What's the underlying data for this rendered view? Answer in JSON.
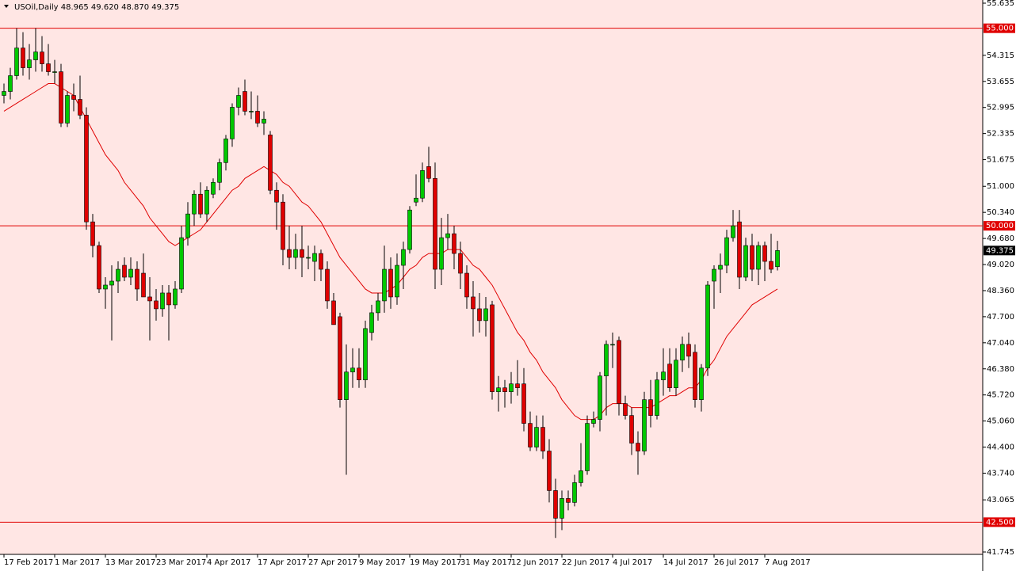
{
  "chart_data": {
    "type": "candlestick",
    "title": "USOil,Daily  48.965 49.620 48.870 49.375",
    "categories": [
      "17 Feb 2017",
      null,
      null,
      null,
      null,
      null,
      null,
      null,
      "1 Mar 2017",
      null,
      null,
      null,
      null,
      null,
      null,
      null,
      "13 Mar 2017",
      null,
      null,
      null,
      null,
      null,
      null,
      null,
      "23 Mar 2017",
      null,
      null,
      null,
      null,
      null,
      null,
      null,
      "4 Apr 2017",
      null,
      null,
      null,
      null,
      null,
      null,
      null,
      "17 Apr 2017",
      null,
      null,
      null,
      null,
      null,
      null,
      null,
      "27 Apr 2017",
      null,
      null,
      null,
      null,
      null,
      null,
      null,
      "9 May 2017",
      null,
      null,
      null,
      null,
      null,
      null,
      null,
      "19 May 2017",
      null,
      null,
      null,
      null,
      null,
      null,
      null,
      "31 May 2017",
      null,
      null,
      null,
      null,
      null,
      null,
      null,
      "12 Jun 2017",
      null,
      null,
      null,
      null,
      null,
      null,
      null,
      "22 Jun 2017",
      null,
      null,
      null,
      null,
      null,
      null,
      null,
      "4 Jul 2017",
      null,
      null,
      null,
      null,
      null,
      null,
      null,
      "14 Jul 2017",
      null,
      null,
      null,
      null,
      null,
      null,
      null,
      "26 Jul 2017",
      null,
      null,
      null,
      null,
      null,
      null,
      null,
      "7 Aug 2017",
      null,
      null
    ],
    "candles": [
      [
        53.3,
        53.6,
        53.1,
        53.4
      ],
      [
        53.4,
        54.0,
        53.2,
        53.8
      ],
      [
        53.8,
        55.0,
        53.7,
        54.5
      ],
      [
        54.5,
        54.9,
        53.8,
        54.0
      ],
      [
        54.0,
        54.6,
        53.7,
        54.2
      ],
      [
        54.2,
        55.0,
        53.9,
        54.4
      ],
      [
        54.4,
        54.8,
        53.9,
        54.1
      ],
      [
        54.1,
        54.6,
        53.8,
        53.9
      ],
      [
        53.9,
        54.2,
        53.6,
        53.9
      ],
      [
        53.9,
        54.1,
        52.5,
        52.6
      ],
      [
        52.6,
        53.4,
        52.5,
        53.3
      ],
      [
        53.3,
        53.6,
        52.9,
        53.2
      ],
      [
        53.2,
        53.8,
        52.7,
        52.8
      ],
      [
        52.8,
        53.0,
        49.9,
        50.1
      ],
      [
        50.1,
        50.3,
        49.2,
        49.5
      ],
      [
        49.5,
        49.6,
        48.3,
        48.4
      ],
      [
        48.4,
        48.7,
        47.9,
        48.5
      ],
      [
        48.5,
        49.0,
        47.1,
        48.6
      ],
      [
        48.6,
        49.1,
        48.3,
        48.9
      ],
      [
        49.0,
        49.2,
        48.6,
        48.7
      ],
      [
        48.7,
        49.2,
        48.5,
        48.9
      ],
      [
        48.9,
        49.1,
        48.1,
        48.4
      ],
      [
        48.8,
        49.3,
        48.2,
        48.2
      ],
      [
        48.2,
        48.7,
        47.1,
        48.1
      ],
      [
        48.1,
        48.4,
        47.6,
        47.9
      ],
      [
        47.9,
        48.5,
        47.7,
        48.3
      ],
      [
        48.3,
        48.5,
        47.1,
        48.0
      ],
      [
        48.0,
        48.6,
        47.9,
        48.4
      ],
      [
        48.4,
        50.0,
        48.3,
        49.7
      ],
      [
        49.7,
        50.6,
        49.5,
        50.3
      ],
      [
        50.3,
        50.9,
        50.0,
        50.8
      ],
      [
        50.8,
        51.1,
        50.2,
        50.3
      ],
      [
        50.3,
        51.0,
        50.1,
        50.9
      ],
      [
        50.8,
        51.2,
        50.7,
        51.1
      ],
      [
        51.1,
        51.7,
        50.9,
        51.6
      ],
      [
        51.6,
        52.3,
        51.4,
        52.2
      ],
      [
        52.2,
        53.1,
        52.0,
        53.0
      ],
      [
        53.0,
        53.5,
        52.8,
        53.3
      ],
      [
        53.4,
        53.7,
        52.8,
        52.9
      ],
      [
        52.9,
        53.4,
        52.7,
        52.9
      ],
      [
        52.9,
        53.3,
        52.5,
        52.6
      ],
      [
        52.6,
        52.9,
        52.3,
        52.7
      ],
      [
        52.3,
        52.4,
        50.8,
        50.9
      ],
      [
        50.9,
        51.1,
        49.9,
        50.6
      ],
      [
        50.6,
        50.8,
        49.0,
        49.4
      ],
      [
        49.4,
        50.0,
        48.9,
        49.2
      ],
      [
        49.2,
        49.8,
        48.9,
        49.4
      ],
      [
        49.4,
        50.0,
        48.7,
        49.2
      ],
      [
        49.2,
        49.5,
        48.9,
        49.2
      ],
      [
        49.1,
        49.5,
        48.6,
        49.3
      ],
      [
        49.3,
        49.4,
        48.6,
        48.9
      ],
      [
        48.9,
        49.1,
        47.9,
        48.1
      ],
      [
        48.1,
        48.3,
        47.5,
        47.5
      ],
      [
        47.7,
        47.8,
        45.4,
        45.6
      ],
      [
        45.6,
        47.0,
        43.7,
        46.3
      ],
      [
        46.3,
        46.9,
        45.9,
        46.4
      ],
      [
        46.4,
        46.9,
        45.9,
        46.1
      ],
      [
        46.1,
        47.6,
        45.9,
        47.4
      ],
      [
        47.3,
        48.0,
        47.1,
        47.8
      ],
      [
        47.8,
        48.3,
        47.6,
        48.1
      ],
      [
        48.1,
        49.5,
        47.8,
        48.9
      ],
      [
        48.9,
        49.2,
        47.9,
        48.2
      ],
      [
        48.2,
        49.3,
        48.0,
        49.0
      ],
      [
        49.0,
        49.6,
        48.4,
        49.4
      ],
      [
        49.4,
        50.5,
        49.3,
        50.4
      ],
      [
        50.6,
        51.3,
        50.5,
        50.7
      ],
      [
        50.7,
        51.6,
        50.6,
        51.4
      ],
      [
        51.5,
        52.0,
        51.1,
        51.2
      ],
      [
        51.2,
        51.6,
        48.4,
        48.9
      ],
      [
        48.9,
        50.2,
        48.5,
        49.7
      ],
      [
        49.7,
        50.3,
        49.4,
        49.8
      ],
      [
        49.8,
        50.0,
        48.9,
        49.3
      ],
      [
        49.3,
        49.6,
        48.4,
        48.8
      ],
      [
        48.8,
        49.0,
        47.9,
        48.2
      ],
      [
        48.2,
        48.6,
        47.2,
        47.9
      ],
      [
        47.9,
        48.3,
        47.3,
        47.6
      ],
      [
        47.6,
        48.2,
        47.2,
        47.9
      ],
      [
        48.0,
        48.1,
        45.6,
        45.8
      ],
      [
        45.8,
        46.2,
        45.3,
        45.9
      ],
      [
        45.9,
        46.1,
        45.4,
        45.8
      ],
      [
        45.8,
        46.3,
        45.5,
        46.0
      ],
      [
        46.0,
        46.6,
        45.7,
        45.9
      ],
      [
        46.0,
        46.4,
        44.8,
        45.0
      ],
      [
        45.0,
        45.3,
        44.3,
        44.4
      ],
      [
        44.4,
        45.2,
        44.3,
        44.9
      ],
      [
        44.9,
        45.2,
        44.1,
        44.3
      ],
      [
        44.3,
        44.6,
        43.0,
        43.3
      ],
      [
        43.3,
        43.6,
        42.1,
        42.6
      ],
      [
        42.6,
        43.3,
        42.3,
        43.1
      ],
      [
        43.1,
        43.3,
        42.8,
        43.0
      ],
      [
        43.0,
        43.7,
        42.9,
        43.5
      ],
      [
        43.5,
        44.5,
        43.4,
        43.8
      ],
      [
        43.8,
        45.2,
        43.7,
        45.0
      ],
      [
        45.0,
        45.3,
        44.9,
        45.1
      ],
      [
        45.1,
        46.3,
        44.8,
        46.2
      ],
      [
        46.2,
        47.1,
        45.2,
        47.0
      ],
      [
        47.0,
        47.3,
        46.4,
        47.0
      ],
      [
        47.1,
        47.2,
        45.2,
        45.5
      ],
      [
        45.5,
        45.7,
        45.1,
        45.2
      ],
      [
        45.2,
        45.4,
        44.2,
        44.5
      ],
      [
        44.5,
        44.8,
        43.7,
        44.3
      ],
      [
        44.3,
        45.8,
        44.2,
        45.6
      ],
      [
        45.6,
        46.1,
        44.9,
        45.2
      ],
      [
        45.2,
        46.3,
        45.1,
        46.1
      ],
      [
        46.1,
        46.9,
        45.7,
        46.3
      ],
      [
        46.5,
        46.9,
        45.8,
        45.9
      ],
      [
        45.9,
        46.9,
        45.7,
        46.6
      ],
      [
        46.6,
        47.2,
        46.3,
        47.0
      ],
      [
        47.0,
        47.3,
        46.4,
        46.7
      ],
      [
        46.8,
        47.0,
        45.4,
        45.6
      ],
      [
        45.6,
        46.5,
        45.3,
        46.4
      ],
      [
        46.4,
        48.6,
        46.2,
        48.5
      ],
      [
        48.6,
        49.0,
        47.9,
        48.9
      ],
      [
        48.9,
        49.3,
        48.3,
        49.0
      ],
      [
        49.0,
        49.9,
        48.8,
        49.7
      ],
      [
        49.7,
        50.4,
        49.6,
        50.0
      ],
      [
        50.1,
        50.4,
        48.4,
        48.7
      ],
      [
        48.7,
        49.7,
        48.6,
        49.5
      ],
      [
        49.5,
        49.8,
        48.6,
        48.9
      ],
      [
        48.9,
        49.6,
        48.5,
        49.5
      ],
      [
        49.5,
        49.6,
        48.6,
        49.1
      ],
      [
        49.1,
        49.8,
        48.8,
        48.9
      ],
      [
        48.965,
        49.62,
        48.87,
        49.375
      ]
    ],
    "up_color": "#00c800",
    "down_color": "#e00000",
    "wick_color": "#000000",
    "series": [
      {
        "color": "#e00000",
        "values": [
          52.9,
          53.0,
          53.1,
          53.2,
          53.3,
          53.4,
          53.5,
          53.6,
          53.6,
          53.5,
          53.4,
          53.3,
          53.0,
          52.7,
          52.4,
          52.1,
          51.8,
          51.6,
          51.4,
          51.1,
          50.9,
          50.7,
          50.5,
          50.2,
          50.0,
          49.8,
          49.6,
          49.5,
          49.6,
          49.7,
          49.8,
          49.9,
          50.1,
          50.3,
          50.5,
          50.7,
          50.9,
          51.0,
          51.2,
          51.3,
          51.4,
          51.5,
          51.4,
          51.3,
          51.1,
          51.0,
          50.8,
          50.6,
          50.5,
          50.3,
          50.1,
          49.8,
          49.5,
          49.2,
          49.0,
          48.8,
          48.6,
          48.4,
          48.3,
          48.3,
          48.3,
          48.4,
          48.5,
          48.7,
          48.9,
          49.0,
          49.2,
          49.3,
          49.3,
          49.3,
          49.4,
          49.4,
          49.4,
          49.2,
          49.0,
          48.9,
          48.7,
          48.5,
          48.2,
          47.9,
          47.6,
          47.3,
          47.1,
          46.8,
          46.6,
          46.3,
          46.1,
          45.9,
          45.6,
          45.4,
          45.2,
          45.1,
          45.1,
          45.1,
          45.2,
          45.4,
          45.5,
          45.5,
          45.5,
          45.4,
          45.4,
          45.4,
          45.4,
          45.5,
          45.6,
          45.7,
          45.7,
          45.8,
          45.9,
          45.9,
          46.1,
          46.4,
          46.6,
          46.9,
          47.2,
          47.4,
          47.6,
          47.8,
          48.0,
          48.1,
          48.2,
          48.3,
          48.4
        ]
      }
    ],
    "levels": [
      {
        "value": 55,
        "label": "55.000"
      },
      {
        "value": 50,
        "label": "50.000"
      },
      {
        "value": 42.5,
        "label": "42.500"
      }
    ],
    "last_price": 49.375,
    "ylim": [
      41.685,
      55.715
    ],
    "yticks": [
      55.635,
      54.315,
      53.655,
      52.995,
      52.335,
      51.675,
      {
        "value": 51,
        "label": "51.000"
      },
      {
        "value": 50.34,
        "label": "50.340"
      },
      {
        "value": 49.68,
        "label": "49.680"
      },
      {
        "value": 49.02,
        "label": "49.020"
      },
      {
        "value": 48.36,
        "label": "48.360"
      },
      {
        "value": 47.7,
        "label": "47.700"
      },
      {
        "value": 47.04,
        "label": "47.040"
      },
      {
        "value": 46.38,
        "label": "46.380"
      },
      {
        "value": 45.72,
        "label": "45.720"
      },
      {
        "value": 45.06,
        "label": "45.060"
      },
      {
        "value": 44.4,
        "label": "44.400"
      },
      {
        "value": 43.74,
        "label": "43.740"
      },
      43.065,
      41.745
    ],
    "background": "#ffe6e4"
  }
}
